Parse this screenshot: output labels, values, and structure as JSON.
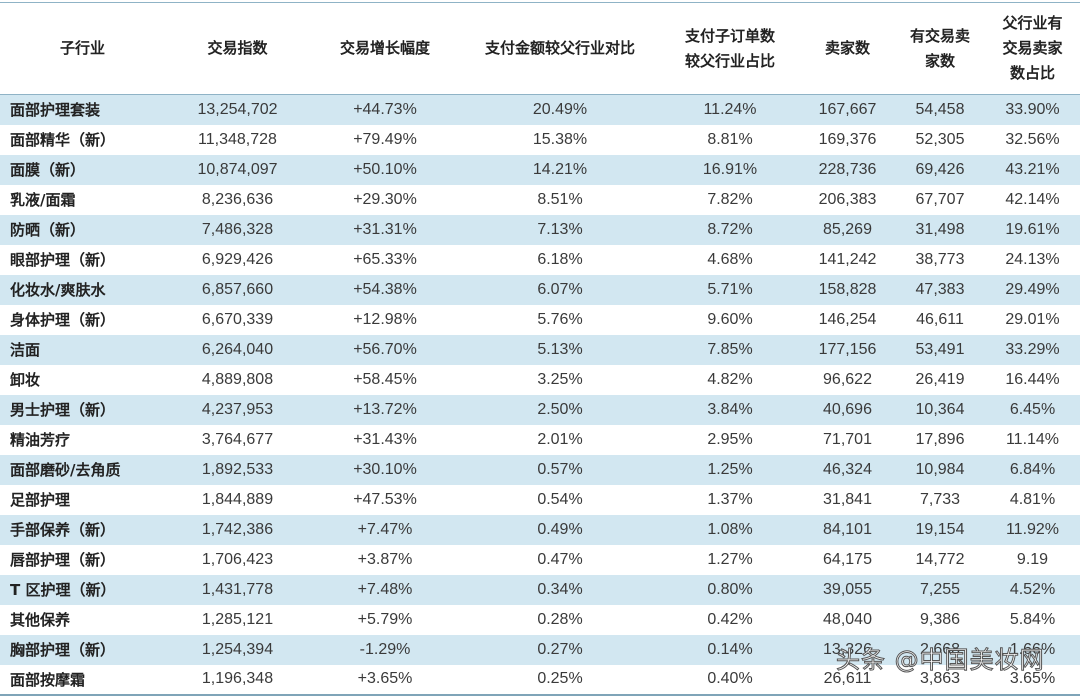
{
  "table": {
    "headers": [
      "子行业",
      "交易指数",
      "交易增长幅度",
      "支付金额较父行业对比",
      "支付子订单数\n较父行业占比",
      "卖家数",
      "有交易卖\n家数",
      "父行业有\n交易卖家\n数占比"
    ],
    "rows": [
      [
        "面部护理套装",
        "13,254,702",
        "+44.73%",
        "20.49%",
        "11.24%",
        "167,667",
        "54,458",
        "33.90%"
      ],
      [
        "面部精华（新）",
        "11,348,728",
        "+79.49%",
        "15.38%",
        "8.81%",
        "169,376",
        "52,305",
        "32.56%"
      ],
      [
        "面膜（新）",
        "10,874,097",
        "+50.10%",
        "14.21%",
        "16.91%",
        "228,736",
        "69,426",
        "43.21%"
      ],
      [
        "乳液/面霜",
        "8,236,636",
        "+29.30%",
        "8.51%",
        "7.82%",
        "206,383",
        "67,707",
        "42.14%"
      ],
      [
        "防晒（新）",
        "7,486,328",
        "+31.31%",
        "7.13%",
        "8.72%",
        "85,269",
        "31,498",
        "19.61%"
      ],
      [
        "眼部护理（新）",
        "6,929,426",
        "+65.33%",
        "6.18%",
        "4.68%",
        "141,242",
        "38,773",
        "24.13%"
      ],
      [
        "化妆水/爽肤水",
        "6,857,660",
        "+54.38%",
        "6.07%",
        "5.71%",
        "158,828",
        "47,383",
        "29.49%"
      ],
      [
        "身体护理（新）",
        "6,670,339",
        "+12.98%",
        "5.76%",
        "9.60%",
        "146,254",
        "46,611",
        "29.01%"
      ],
      [
        "洁面",
        "6,264,040",
        "+56.70%",
        "5.13%",
        "7.85%",
        "177,156",
        "53,491",
        "33.29%"
      ],
      [
        "卸妆",
        "4,889,808",
        "+58.45%",
        "3.25%",
        "4.82%",
        "96,622",
        "26,419",
        "16.44%"
      ],
      [
        "男士护理（新）",
        "4,237,953",
        "+13.72%",
        "2.50%",
        "3.84%",
        "40,696",
        "10,364",
        "6.45%"
      ],
      [
        "精油芳疗",
        "3,764,677",
        "+31.43%",
        "2.01%",
        "2.95%",
        "71,701",
        "17,896",
        "11.14%"
      ],
      [
        "面部磨砂/去角质",
        "1,892,533",
        "+30.10%",
        "0.57%",
        "1.25%",
        "46,324",
        "10,984",
        "6.84%"
      ],
      [
        "足部护理",
        "1,844,889",
        "+47.53%",
        "0.54%",
        "1.37%",
        "31,841",
        "7,733",
        "4.81%"
      ],
      [
        "手部保养（新）",
        "1,742,386",
        "+7.47%",
        "0.49%",
        "1.08%",
        "84,101",
        "19,154",
        "11.92%"
      ],
      [
        "唇部护理（新）",
        "1,706,423",
        "+3.87%",
        "0.47%",
        "1.27%",
        "64,175",
        "14,772",
        "9.19"
      ],
      [
        "T 区护理（新）",
        "1,431,778",
        "+7.48%",
        "0.34%",
        "0.80%",
        "39,055",
        "7,255",
        "4.52%"
      ],
      [
        "其他保养",
        "1,285,121",
        "+5.79%",
        "0.28%",
        "0.42%",
        "48,040",
        "9,386",
        "5.84%"
      ],
      [
        "胸部护理（新）",
        "1,254,394",
        "-1.29%",
        "0.27%",
        "0.14%",
        "13,326",
        "2,668",
        "1.66%"
      ],
      [
        "面部按摩霜",
        "1,196,348",
        "+3.65%",
        "0.25%",
        "0.40%",
        "26,611",
        "3,863",
        "3.65%"
      ]
    ]
  },
  "watermark": "头条 @中国美妆网",
  "colors": {
    "stripe": "#d2e7f1",
    "border": "#8fb3c6"
  }
}
